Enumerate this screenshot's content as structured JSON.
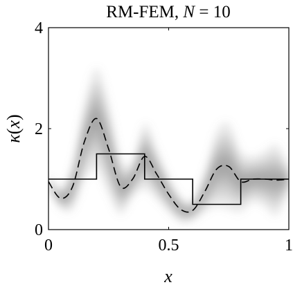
{
  "chart_data": {
    "type": "line",
    "title": "RM-FEM, N = 10",
    "title_parts": {
      "main": "RM-FEM, ",
      "var": "N",
      "rest": " = 10"
    },
    "xlabel": "x",
    "ylabel": "κ(x)",
    "ylabel_parts": {
      "kappa": "κ",
      "open": "(",
      "var": "x",
      "close": ")"
    },
    "xlim": [
      0,
      1
    ],
    "ylim": [
      0,
      4
    ],
    "xticks": [
      0,
      0.5,
      1
    ],
    "xtick_labels": [
      "0",
      "0.5",
      "1"
    ],
    "yticks": [
      0,
      2,
      4
    ],
    "ytick_labels": [
      "0",
      "2",
      "4"
    ],
    "grid": false,
    "legend": "none",
    "series": [
      {
        "style": "solid-step",
        "color": "#000000",
        "x": [
          0,
          0.2,
          0.2,
          0.4,
          0.4,
          0.6,
          0.6,
          0.8,
          0.8,
          1.0
        ],
        "y": [
          1.0,
          1.0,
          1.5,
          1.5,
          1.0,
          1.0,
          0.5,
          0.5,
          1.0,
          1.0
        ]
      },
      {
        "style": "dashed",
        "color": "#000000",
        "x": [
          0,
          0.05,
          0.1,
          0.15,
          0.2,
          0.25,
          0.3,
          0.35,
          0.4,
          0.45,
          0.5,
          0.55,
          0.6,
          0.65,
          0.7,
          0.75,
          0.8,
          0.85,
          0.9,
          0.95,
          1.0
        ],
        "y": [
          0.95,
          0.62,
          0.85,
          1.75,
          2.2,
          1.6,
          0.85,
          1.0,
          1.45,
          1.1,
          0.7,
          0.4,
          0.38,
          0.75,
          1.2,
          1.25,
          0.95,
          1.0,
          1.0,
          0.98,
          1.0
        ]
      }
    ],
    "uncertainty_band": {
      "color": "#808080",
      "x": [
        0,
        0.05,
        0.1,
        0.15,
        0.2,
        0.25,
        0.3,
        0.35,
        0.4,
        0.45,
        0.5,
        0.55,
        0.6,
        0.65,
        0.7,
        0.75,
        0.8,
        0.85,
        0.9,
        0.95,
        1.0
      ],
      "center": [
        0.95,
        0.62,
        0.85,
        1.75,
        2.2,
        1.6,
        0.85,
        1.0,
        1.45,
        1.1,
        0.7,
        0.4,
        0.38,
        0.75,
        1.2,
        1.25,
        0.95,
        1.0,
        1.0,
        0.98,
        1.0
      ],
      "halfwidth": [
        0.12,
        0.2,
        0.45,
        0.75,
        1.0,
        0.9,
        0.55,
        0.35,
        0.65,
        0.5,
        0.35,
        0.25,
        0.2,
        0.4,
        0.75,
        0.85,
        0.6,
        0.45,
        0.55,
        0.7,
        0.25
      ]
    }
  }
}
